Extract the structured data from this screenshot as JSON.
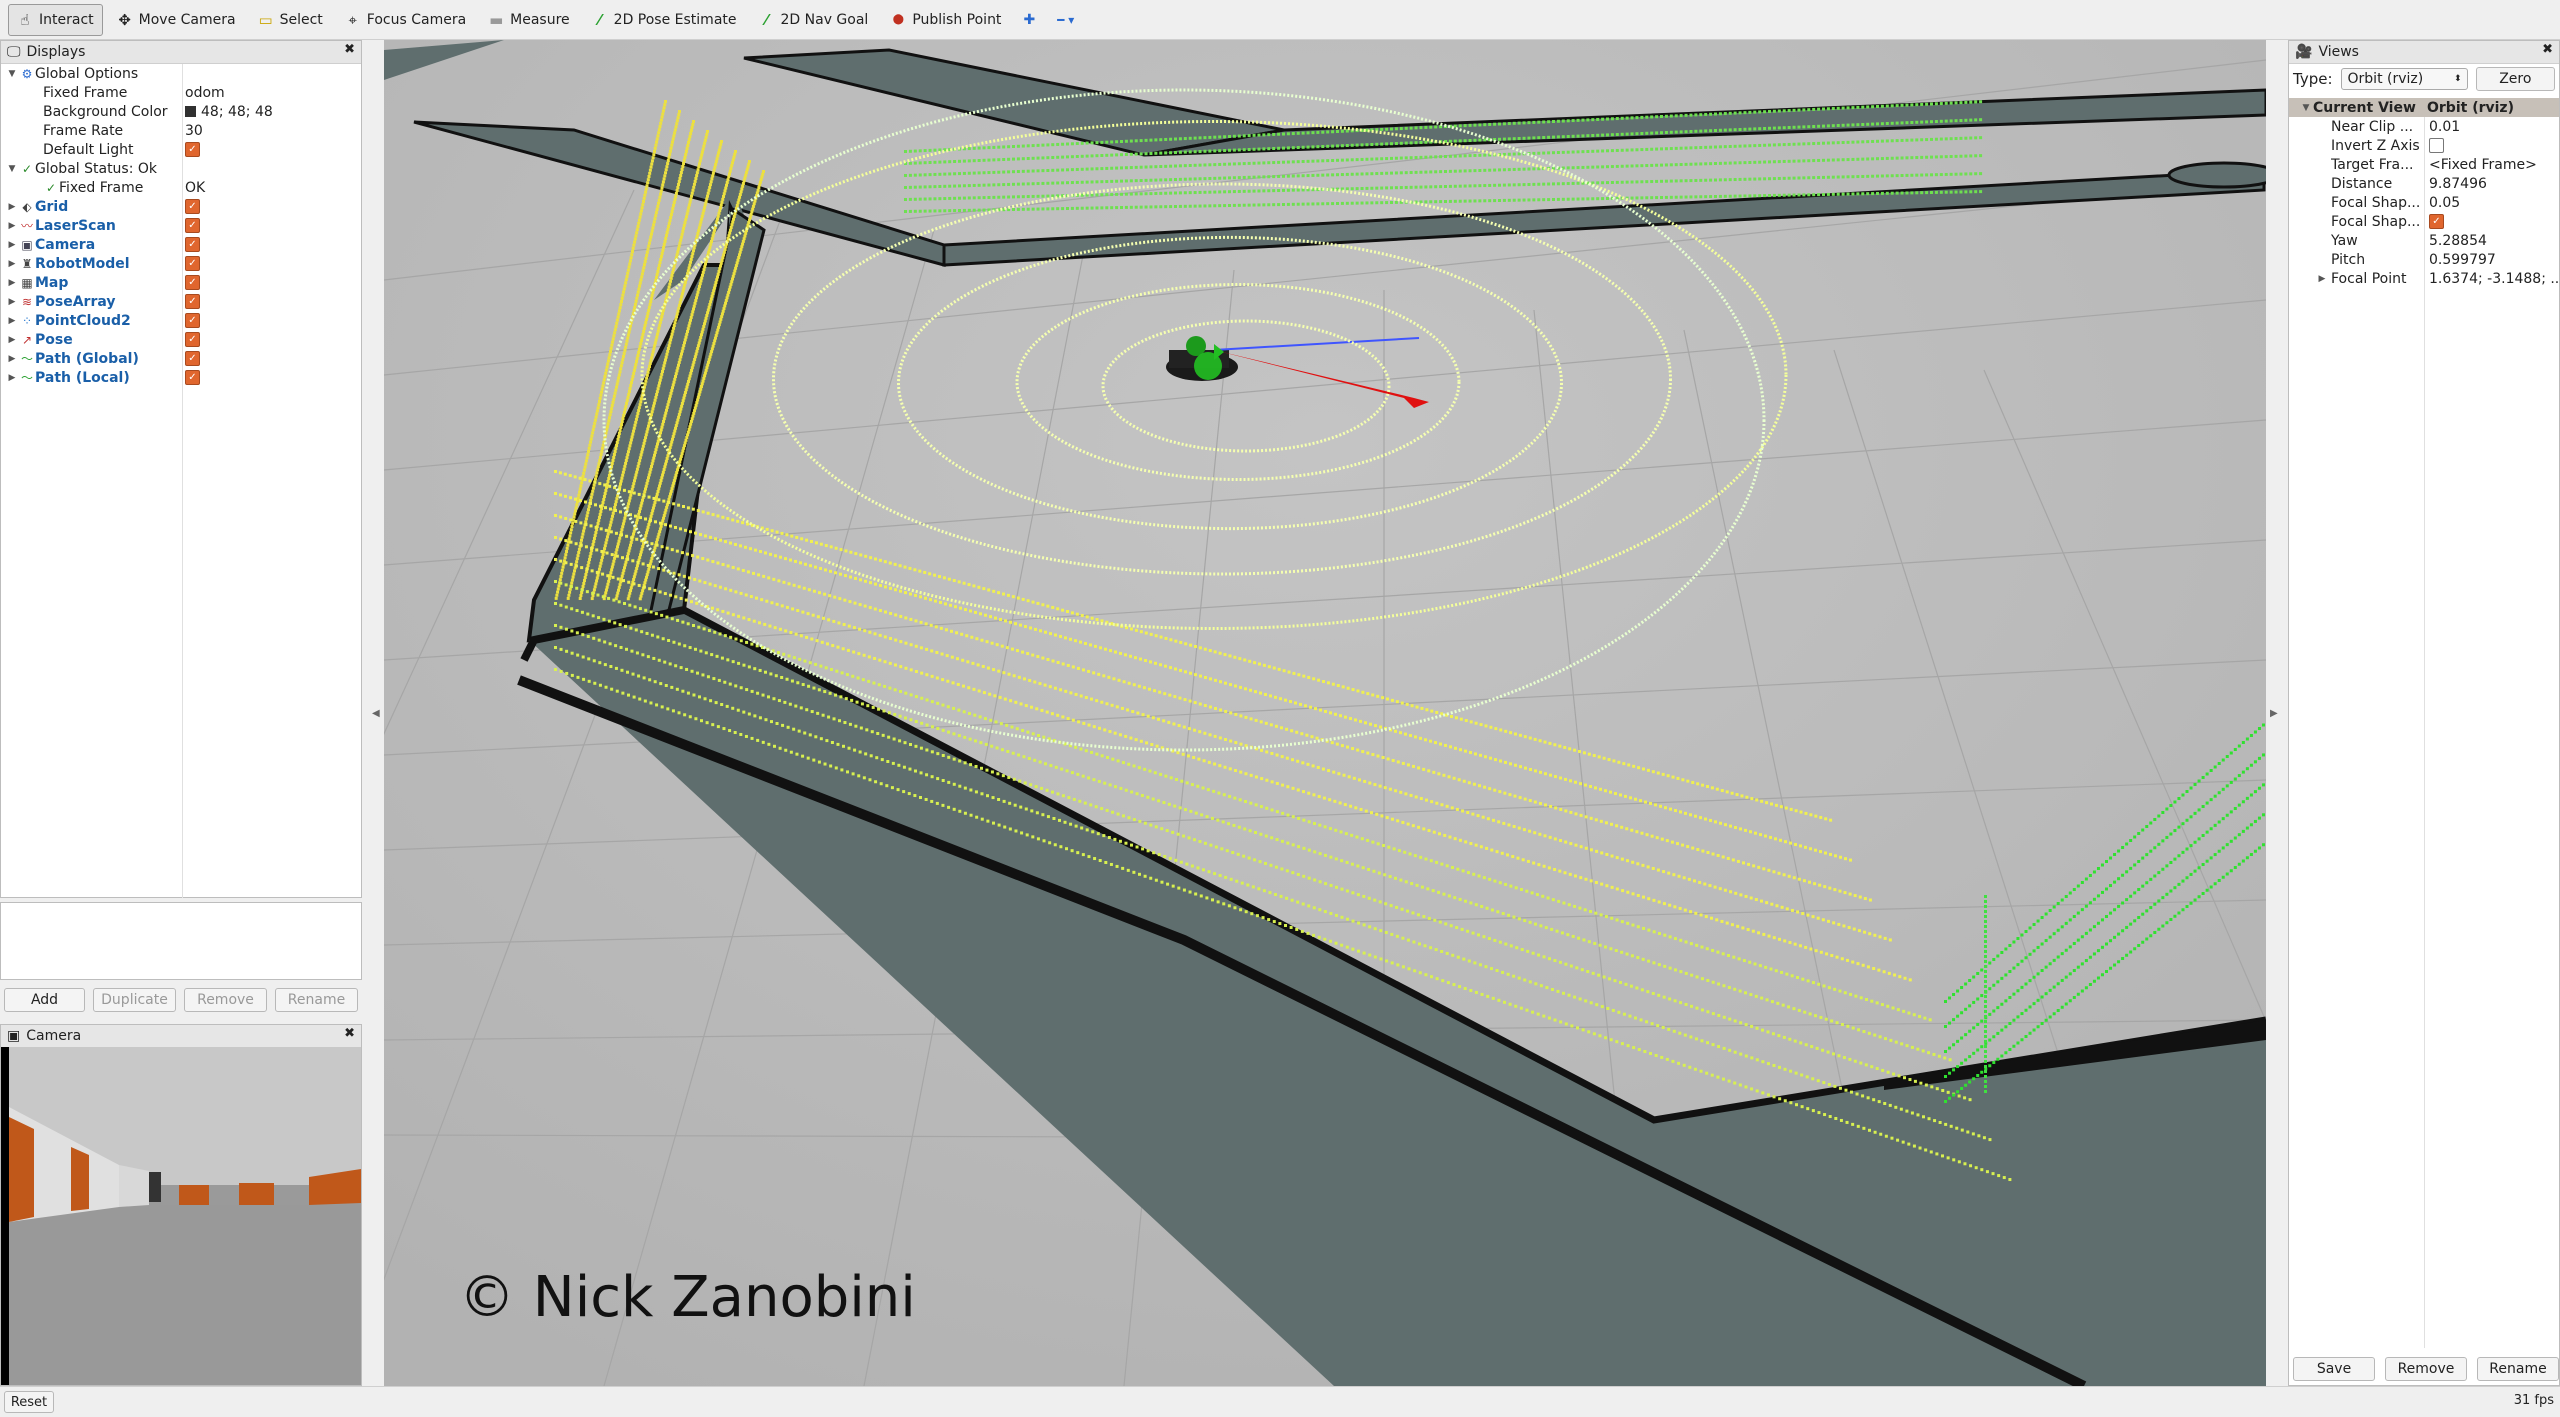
{
  "toolbar": {
    "tools": [
      {
        "label": "Interact",
        "icon": "pointer-icon",
        "glyph": "☝"
      },
      {
        "label": "Move Camera",
        "icon": "move-camera-icon",
        "glyph": "✥"
      },
      {
        "label": "Select",
        "icon": "select-icon",
        "glyph": "▭"
      },
      {
        "label": "Focus Camera",
        "icon": "focus-camera-icon",
        "glyph": "⌖"
      },
      {
        "label": "Measure",
        "icon": "measure-icon",
        "glyph": "▬"
      },
      {
        "label": "2D Pose Estimate",
        "icon": "pose-estimate-icon",
        "glyph": "⁄"
      },
      {
        "label": "2D Nav Goal",
        "icon": "nav-goal-icon",
        "glyph": "⁄"
      },
      {
        "label": "Publish Point",
        "icon": "publish-point-icon",
        "glyph": "⬤"
      }
    ],
    "add_glyph": "✚",
    "remove_glyph": "━ ▾"
  },
  "displays": {
    "title": "Displays",
    "global_options": "Global Options",
    "fixed_frame_label": "Fixed Frame",
    "fixed_frame_value": "odom",
    "bg_label": "Background Color",
    "bg_value": "48; 48; 48",
    "frame_rate_label": "Frame Rate",
    "frame_rate_value": "30",
    "default_light_label": "Default Light",
    "global_status": "Global Status: Ok",
    "status_fixed_frame": "Fixed Frame",
    "status_fixed_frame_value": "OK",
    "items": [
      {
        "label": "Grid",
        "icon": "grid-icon",
        "glyph": "⬖",
        "color": "#444"
      },
      {
        "label": "LaserScan",
        "icon": "laserscan-icon",
        "glyph": "〰",
        "color": "#c03030"
      },
      {
        "label": "Camera",
        "icon": "camera-icon",
        "glyph": "▣",
        "color": "#445"
      },
      {
        "label": "RobotModel",
        "icon": "robot-model-icon",
        "glyph": "♜",
        "color": "#444"
      },
      {
        "label": "Map",
        "icon": "map-icon",
        "glyph": "▦",
        "color": "#444"
      },
      {
        "label": "PoseArray",
        "icon": "pose-array-icon",
        "glyph": "≋",
        "color": "#c03030"
      },
      {
        "label": "PointCloud2",
        "icon": "pointcloud-icon",
        "glyph": "⁘",
        "color": "#2a7ad0"
      },
      {
        "label": "Pose",
        "icon": "pose-icon",
        "glyph": "↗",
        "color": "#c03030"
      },
      {
        "label": "Path (Global)",
        "icon": "path-global-icon",
        "glyph": "〜",
        "color": "#2aa030"
      },
      {
        "label": "Path (Local)",
        "icon": "path-local-icon",
        "glyph": "〜",
        "color": "#2aa030"
      }
    ],
    "buttons": {
      "add": "Add",
      "duplicate": "Duplicate",
      "remove": "Remove",
      "rename": "Rename"
    }
  },
  "camera_panel": {
    "title": "Camera"
  },
  "views": {
    "title": "Views",
    "type_label": "Type:",
    "type_value": "Orbit (rviz)",
    "zero": "Zero",
    "current_view": "Current View",
    "current_view_value": "Orbit (rviz)",
    "props": [
      {
        "label": "Near Clip ...",
        "value": "0.01"
      },
      {
        "label": "Invert Z Axis",
        "value": "",
        "checkbox": "off"
      },
      {
        "label": "Target Fra...",
        "value": "<Fixed Frame>"
      },
      {
        "label": "Distance",
        "value": "9.87496"
      },
      {
        "label": "Focal Shap...",
        "value": "0.05"
      },
      {
        "label": "Focal Shap...",
        "value": "",
        "checkbox": "on"
      },
      {
        "label": "Yaw",
        "value": "5.28854"
      },
      {
        "label": "Pitch",
        "value": "0.599797"
      },
      {
        "label": "Focal Point",
        "value": "1.6374; -3.1488; ..."
      }
    ],
    "buttons": {
      "save": "Save",
      "remove": "Remove",
      "rename": "Rename"
    }
  },
  "status": {
    "reset": "Reset",
    "fps": "31 fps"
  },
  "watermark": "© Nick Zanobini"
}
